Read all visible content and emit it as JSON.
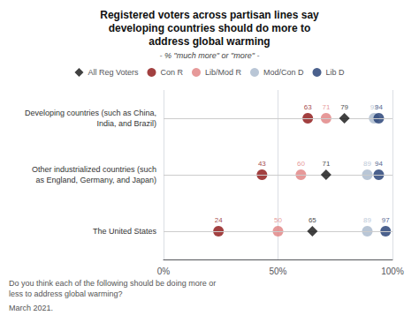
{
  "chart_data": {
    "type": "scatter",
    "title": "Registered voters across partisan lines say\ndeveloping countries should do more to\naddress global warming",
    "subtitle": "- % \"much more\" or \"more\" -",
    "categories": [
      "Developing countries (such as China,\n   India, and Brazil)",
      "Other industrialized countries (such\nas England, Germany, and Japan)",
      "The United States"
    ],
    "series": [
      {
        "name": "All Reg Voters",
        "values": [
          79,
          71,
          65
        ],
        "color": "#111111",
        "marker": "diamond"
      },
      {
        "name": "Con R",
        "values": [
          63,
          43,
          24
        ],
        "color": "#8b1010",
        "marker": "circle"
      },
      {
        "name": "Lib/Mod R",
        "values": [
          71,
          60,
          50
        ],
        "color": "#e08080",
        "marker": "circle"
      },
      {
        "name": "Mod/Con D",
        "values": [
          92,
          89,
          89
        ],
        "color": "#a8b8cc",
        "marker": "circle"
      },
      {
        "name": "Lib D",
        "values": [
          94,
          94,
          97
        ],
        "color": "#1e3a70",
        "marker": "circle"
      }
    ],
    "xlim": [
      0,
      100
    ],
    "xticks": [
      {
        "value": 0,
        "label": "0%"
      },
      {
        "value": 50,
        "label": "50%"
      },
      {
        "value": 100,
        "label": "100%"
      }
    ],
    "annotations": [
      "Do you think each of the following should be doing more or",
      "less to address global warming?",
      "March 2021."
    ],
    "data_labels": true,
    "legend": "top",
    "grid": true
  }
}
